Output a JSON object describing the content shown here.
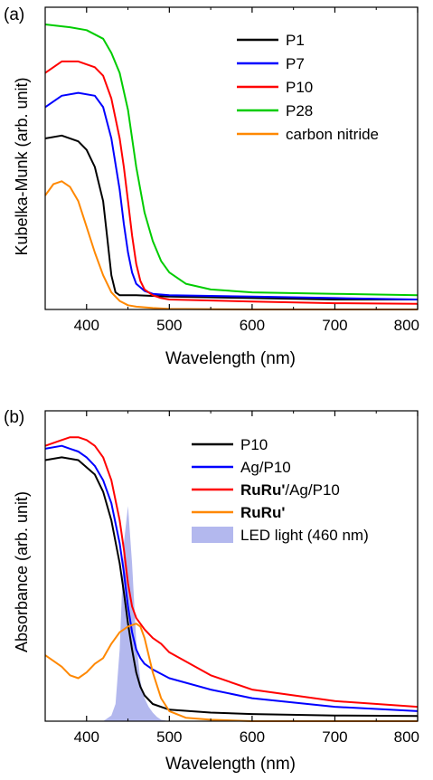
{
  "chart_data": [
    {
      "panel_label": "(a)",
      "type": "line",
      "xlabel": "Wavelength (nm)",
      "ylabel": "Kubelka-Munk (arb. unit)",
      "xlim": [
        350,
        800
      ],
      "ylim": [
        0,
        1.0
      ],
      "x_ticks": [
        400,
        500,
        600,
        700,
        800
      ],
      "y_ticks_visible": false,
      "grid": false,
      "legend_position": "top-right",
      "series": [
        {
          "name": "P1",
          "color": "#000000",
          "weight": "normal",
          "x": [
            350,
            370,
            390,
            400,
            410,
            420,
            425,
            430,
            435,
            440,
            450,
            460,
            500,
            600,
            700,
            800
          ],
          "y": [
            0.6,
            0.61,
            0.59,
            0.56,
            0.5,
            0.38,
            0.25,
            0.12,
            0.06,
            0.05,
            0.05,
            0.05,
            0.045,
            0.04,
            0.035,
            0.035
          ]
        },
        {
          "name": "P7",
          "color": "#0000ff",
          "weight": "normal",
          "x": [
            350,
            370,
            390,
            410,
            420,
            430,
            440,
            445,
            450,
            455,
            460,
            470,
            480,
            500,
            600,
            700,
            800
          ],
          "y": [
            0.71,
            0.75,
            0.76,
            0.75,
            0.71,
            0.6,
            0.42,
            0.3,
            0.2,
            0.13,
            0.09,
            0.065,
            0.055,
            0.05,
            0.045,
            0.04,
            0.035
          ]
        },
        {
          "name": "P10",
          "color": "#ff0000",
          "weight": "normal",
          "x": [
            350,
            370,
            390,
            410,
            420,
            430,
            440,
            445,
            450,
            455,
            460,
            465,
            470,
            480,
            490,
            500,
            600,
            700,
            800
          ],
          "y": [
            0.83,
            0.87,
            0.87,
            0.85,
            0.82,
            0.74,
            0.6,
            0.5,
            0.38,
            0.26,
            0.16,
            0.1,
            0.07,
            0.05,
            0.04,
            0.035,
            0.028,
            0.022,
            0.02
          ]
        },
        {
          "name": "P28",
          "color": "#00cc00",
          "weight": "normal",
          "x": [
            350,
            380,
            400,
            420,
            430,
            440,
            450,
            460,
            470,
            480,
            490,
            500,
            520,
            550,
            600,
            700,
            800
          ],
          "y": [
            1.0,
            0.99,
            0.98,
            0.95,
            0.9,
            0.83,
            0.7,
            0.5,
            0.34,
            0.24,
            0.17,
            0.13,
            0.09,
            0.07,
            0.06,
            0.055,
            0.05
          ]
        },
        {
          "name": "carbon nitride",
          "color": "#ff8800",
          "weight": "normal",
          "x": [
            350,
            360,
            370,
            380,
            390,
            400,
            410,
            420,
            430,
            440,
            450,
            460,
            480,
            500,
            600,
            700,
            800
          ],
          "y": [
            0.4,
            0.44,
            0.45,
            0.43,
            0.38,
            0.29,
            0.2,
            0.12,
            0.06,
            0.03,
            0.015,
            0.01,
            0.005,
            0.002,
            0.0,
            0.0,
            0.0
          ]
        }
      ]
    },
    {
      "panel_label": "(b)",
      "type": "line",
      "xlabel": "Wavelength (nm)",
      "ylabel": "Absorbance (arb. unit)",
      "xlim": [
        350,
        800
      ],
      "ylim": [
        0,
        1.0
      ],
      "x_ticks": [
        400,
        500,
        600,
        700,
        800
      ],
      "y_ticks_visible": false,
      "grid": false,
      "legend_position": "top-right",
      "series": [
        {
          "name": "P10",
          "color": "#000000",
          "weight": "normal",
          "x": [
            350,
            370,
            390,
            410,
            420,
            430,
            440,
            445,
            450,
            455,
            460,
            465,
            470,
            480,
            500,
            550,
            600,
            700,
            800
          ],
          "y": [
            0.91,
            0.92,
            0.91,
            0.86,
            0.8,
            0.7,
            0.55,
            0.45,
            0.34,
            0.25,
            0.17,
            0.12,
            0.09,
            0.06,
            0.04,
            0.03,
            0.025,
            0.02,
            0.018
          ]
        },
        {
          "name": "Ag/P10",
          "color": "#0000ff",
          "weight": "normal",
          "x": [
            350,
            370,
            380,
            390,
            400,
            410,
            420,
            430,
            440,
            445,
            450,
            455,
            460,
            465,
            470,
            480,
            500,
            550,
            600,
            700,
            800
          ],
          "y": [
            0.95,
            0.96,
            0.95,
            0.94,
            0.92,
            0.89,
            0.84,
            0.76,
            0.62,
            0.52,
            0.4,
            0.31,
            0.25,
            0.22,
            0.2,
            0.18,
            0.15,
            0.11,
            0.08,
            0.05,
            0.035
          ]
        },
        {
          "name": "RuRu'/Ag/P10",
          "color": "#ff0000",
          "weight": "bold-prefix",
          "x": [
            350,
            370,
            380,
            390,
            400,
            410,
            420,
            430,
            440,
            445,
            450,
            455,
            460,
            470,
            480,
            490,
            500,
            550,
            600,
            700,
            800
          ],
          "y": [
            0.96,
            0.98,
            0.99,
            0.99,
            0.98,
            0.96,
            0.92,
            0.84,
            0.7,
            0.6,
            0.48,
            0.4,
            0.36,
            0.32,
            0.29,
            0.27,
            0.24,
            0.16,
            0.11,
            0.07,
            0.05
          ]
        },
        {
          "name": "RuRu'",
          "color": "#ff8800",
          "weight": "bold",
          "x": [
            350,
            360,
            370,
            380,
            390,
            400,
            410,
            420,
            430,
            440,
            450,
            460,
            465,
            470,
            480,
            490,
            500,
            520,
            550,
            600,
            700,
            800
          ],
          "y": [
            0.23,
            0.21,
            0.19,
            0.16,
            0.15,
            0.17,
            0.2,
            0.22,
            0.27,
            0.31,
            0.33,
            0.34,
            0.33,
            0.29,
            0.17,
            0.08,
            0.035,
            0.012,
            0.005,
            0.0,
            0.0,
            0.0
          ]
        },
        {
          "name": "LED light (460 nm)",
          "color": "#b3b8ee",
          "weight": "normal",
          "fill": true,
          "x": [
            420,
            430,
            435,
            440,
            445,
            450,
            455,
            460,
            465,
            470,
            475,
            480,
            485,
            490,
            500
          ],
          "y": [
            0.0,
            0.02,
            0.06,
            0.25,
            0.62,
            0.75,
            0.55,
            0.28,
            0.14,
            0.08,
            0.05,
            0.03,
            0.015,
            0.005,
            0.0
          ]
        }
      ]
    }
  ]
}
